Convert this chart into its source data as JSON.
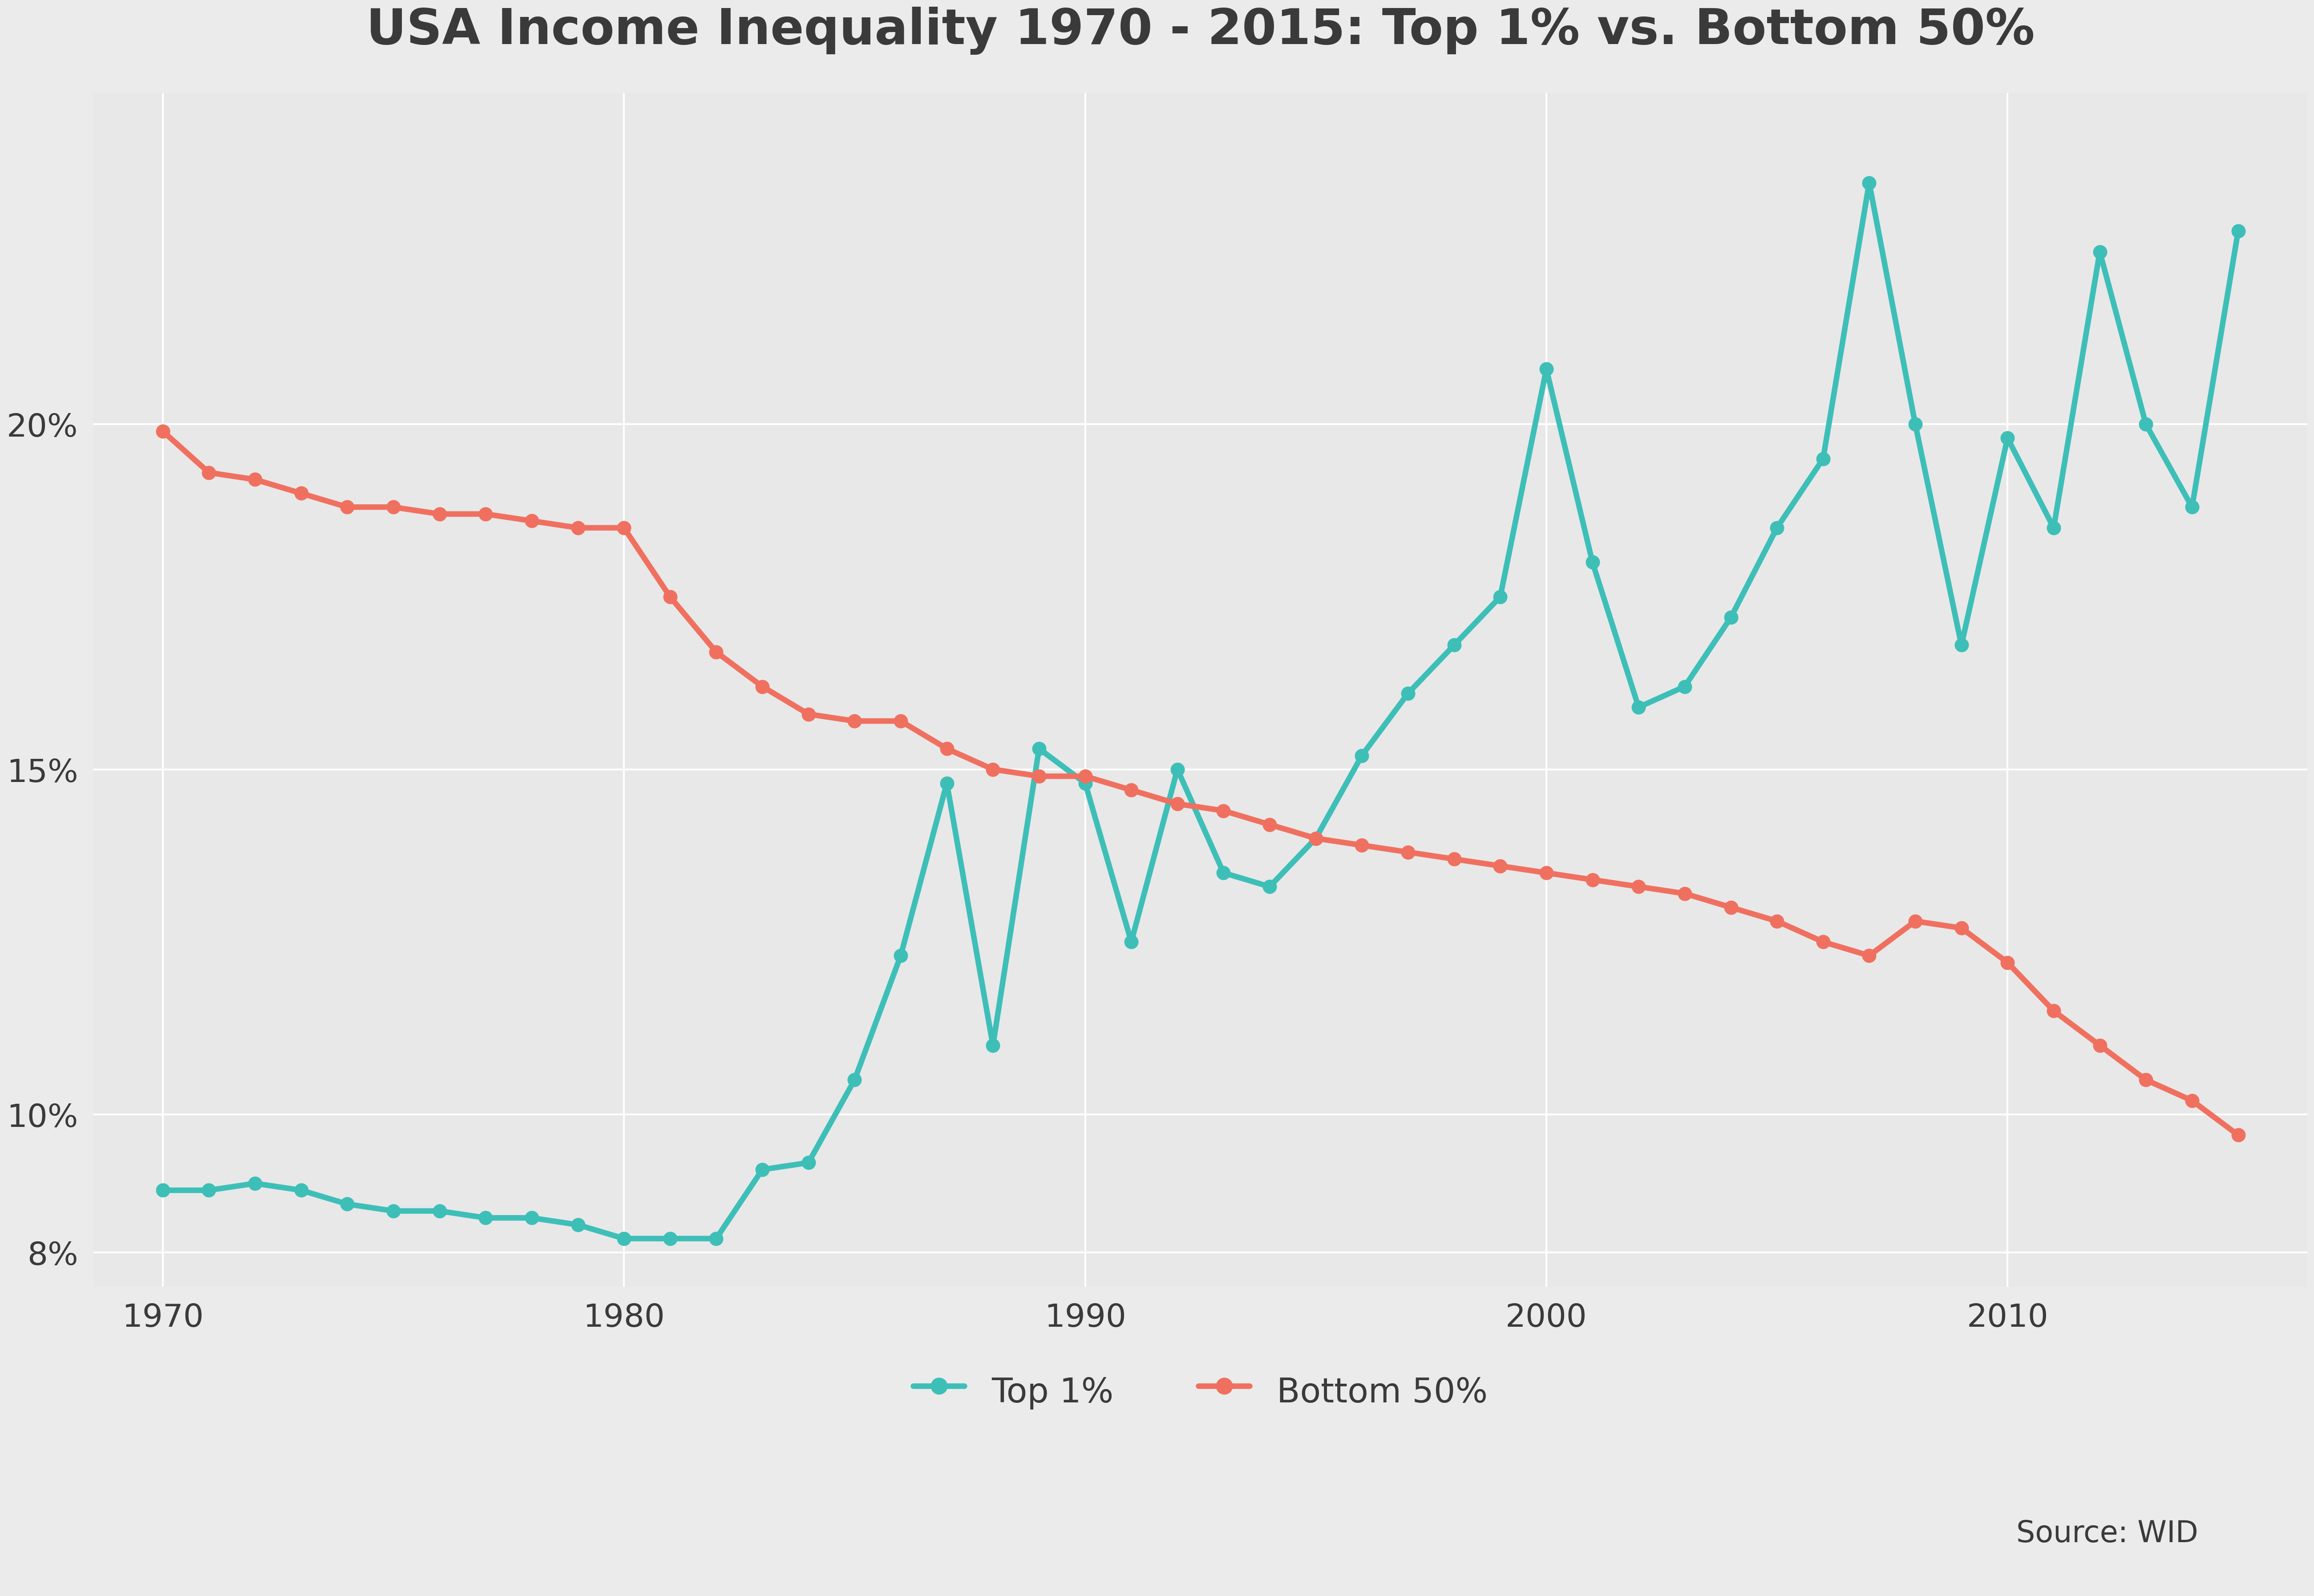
{
  "title": "USA Income Inequality 1970 - 2015: Top 1% vs. Bottom 50%",
  "top1_data": {
    "years": [
      1970,
      1971,
      1972,
      1973,
      1974,
      1975,
      1976,
      1977,
      1978,
      1979,
      1980,
      1981,
      1982,
      1983,
      1984,
      1985,
      1986,
      1987,
      1988,
      1989,
      1990,
      1991,
      1992,
      1993,
      1994,
      1995,
      1996,
      1997,
      1998,
      1999,
      2000,
      2001,
      2002,
      2003,
      2004,
      2005,
      2006,
      2007,
      2008,
      2009,
      2010,
      2011,
      2012,
      2013,
      2014,
      2015
    ],
    "values": [
      8.9,
      8.9,
      9.0,
      8.9,
      8.7,
      8.6,
      8.6,
      8.5,
      8.5,
      8.4,
      8.2,
      8.2,
      8.2,
      9.2,
      9.3,
      10.5,
      12.3,
      14.8,
      11.0,
      15.3,
      14.8,
      12.5,
      15.0,
      13.5,
      13.3,
      14.0,
      15.2,
      16.1,
      16.8,
      17.5,
      20.8,
      18.0,
      15.9,
      16.2,
      17.2,
      18.5,
      19.5,
      23.5,
      20.0,
      16.8,
      19.8,
      18.5,
      22.5,
      20.0,
      18.8,
      22.8
    ]
  },
  "bottom50_data": {
    "years": [
      1970,
      1971,
      1972,
      1973,
      1974,
      1975,
      1976,
      1977,
      1978,
      1979,
      1980,
      1981,
      1982,
      1983,
      1984,
      1985,
      1986,
      1987,
      1988,
      1989,
      1990,
      1991,
      1992,
      1993,
      1994,
      1995,
      1996,
      1997,
      1998,
      1999,
      2000,
      2001,
      2002,
      2003,
      2004,
      2005,
      2006,
      2007,
      2008,
      2009,
      2010,
      2011,
      2012,
      2013,
      2014,
      2015
    ],
    "values": [
      19.9,
      19.3,
      19.2,
      19.0,
      18.8,
      18.8,
      18.7,
      18.7,
      18.6,
      18.5,
      18.5,
      17.5,
      16.7,
      16.2,
      15.8,
      15.7,
      15.7,
      15.3,
      15.0,
      14.9,
      14.9,
      14.7,
      14.5,
      14.4,
      14.2,
      14.0,
      13.9,
      13.8,
      13.7,
      13.6,
      13.5,
      13.4,
      13.3,
      13.2,
      13.0,
      12.8,
      12.5,
      12.3,
      12.8,
      12.7,
      12.2,
      11.5,
      11.0,
      10.5,
      10.2,
      9.7
    ]
  },
  "top1_color": "#3DBFB8",
  "bottom50_color": "#F07060",
  "background_color": "#EBEBEB",
  "plot_bg_color": "#E8E8E8",
  "grid_color": "#FFFFFF",
  "text_color": "#3A3A3A",
  "yticks": [
    8,
    10,
    15,
    20
  ],
  "ytick_labels": [
    "8%",
    "10%",
    "15%",
    "20%"
  ],
  "xticks": [
    1970,
    1980,
    1990,
    2000,
    2010
  ],
  "ylim": [
    7.5,
    24.8
  ],
  "xlim": [
    1968.5,
    2016.5
  ],
  "source_text": "Source: WID",
  "legend_top1": "Top 1%",
  "legend_bottom50": "Bottom 50%"
}
